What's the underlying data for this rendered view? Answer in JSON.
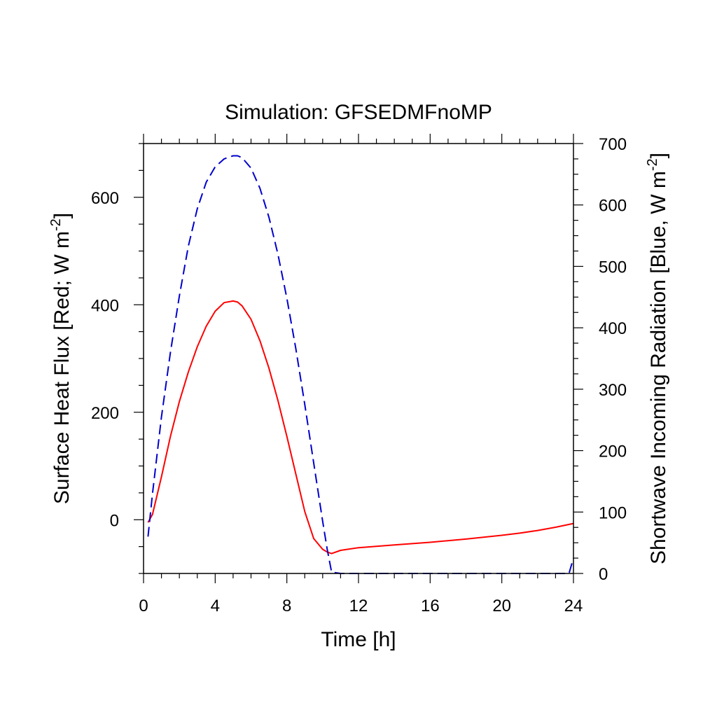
{
  "chart_data": {
    "type": "line",
    "title": "Simulation: GFSEDMFnoMP",
    "xlabel": "Time [h]",
    "ylabel_left": {
      "pre": "Surface Heat Flux [Red; W m",
      "sup": "-2",
      "post": "]"
    },
    "ylabel_right": {
      "pre": "Shortwave Incoming Radiation [Blue, W m",
      "sup": "-2",
      "post": "]"
    },
    "xlim": [
      0,
      24
    ],
    "ylim_left": [
      -100,
      700
    ],
    "ylim_right": [
      0,
      700
    ],
    "x_ticks": [
      0,
      4,
      8,
      12,
      16,
      20,
      24
    ],
    "y_left_ticks": [
      0,
      200,
      400,
      600
    ],
    "y_right_ticks": [
      0,
      100,
      200,
      300,
      400,
      500,
      600,
      700
    ],
    "grid": false,
    "series": [
      {
        "axis": "left",
        "color": "#ff0000",
        "style": "solid",
        "x": [
          0.25,
          0.5,
          1,
          1.5,
          2,
          2.5,
          3,
          3.5,
          4,
          4.5,
          5,
          5.25,
          5.5,
          6,
          6.5,
          7,
          7.5,
          8,
          8.5,
          9,
          9.5,
          10,
          10.25,
          10.5,
          11,
          12,
          14,
          16,
          18,
          20,
          21,
          22,
          23,
          24
        ],
        "values": [
          -5,
          10,
          80,
          155,
          220,
          275,
          322,
          360,
          388,
          404,
          407,
          405,
          398,
          373,
          333,
          282,
          222,
          155,
          85,
          15,
          -35,
          -55,
          -60,
          -63,
          -57,
          -52,
          -47,
          -42,
          -36,
          -29,
          -25,
          -20,
          -14,
          -7
        ]
      },
      {
        "axis": "right",
        "color": "#0000cc",
        "style": "dashed",
        "x": [
          0.25,
          0.5,
          1,
          1.5,
          2,
          2.5,
          3,
          3.5,
          4,
          4.5,
          5,
          5.25,
          5.5,
          6,
          6.5,
          7,
          7.5,
          8,
          8.5,
          9,
          9.5,
          10,
          10.25,
          10.5,
          11,
          12,
          14,
          16,
          18,
          20,
          22,
          23.75,
          24
        ],
        "values": [
          60,
          130,
          255,
          360,
          452,
          533,
          594,
          637,
          662,
          675,
          680,
          680,
          677,
          660,
          627,
          580,
          520,
          448,
          366,
          275,
          180,
          85,
          40,
          2,
          0,
          0,
          0,
          0,
          0,
          0,
          0,
          0,
          25
        ]
      }
    ]
  }
}
